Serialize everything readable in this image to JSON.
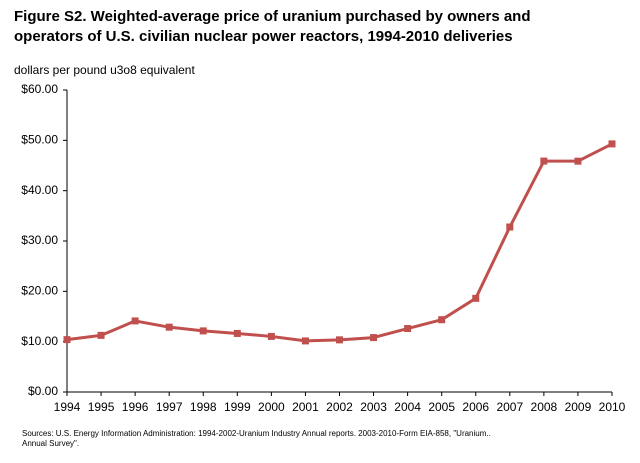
{
  "chart_data": {
    "type": "line",
    "title": [
      "Figure S2.  Weighted-average price of uranium purchased by owners and",
      "operators of U.S. civilian nuclear power reactors, 1994-2010 deliveries"
    ],
    "y_label": "dollars per pound u3o8 equivalent",
    "categories": [
      "1994",
      "1995",
      "1996",
      "1997",
      "1998",
      "1999",
      "2000",
      "2001",
      "2002",
      "2003",
      "2004",
      "2005",
      "2006",
      "2007",
      "2008",
      "2009",
      "2010"
    ],
    "series": [
      {
        "color": "#c0504d",
        "values": [
          10.4,
          11.25,
          14.12,
          12.88,
          12.14,
          11.63,
          11.04,
          10.15,
          10.36,
          10.81,
          12.61,
          14.36,
          18.61,
          32.78,
          45.88,
          45.86,
          49.29
        ]
      }
    ],
    "ylim": [
      0,
      60
    ],
    "yticks": [
      {
        "value": 0,
        "label": "$0.00"
      },
      {
        "value": 10,
        "label": "$10.00"
      },
      {
        "value": 20,
        "label": "$20.00"
      },
      {
        "value": 30,
        "label": "$30.00"
      },
      {
        "value": 40,
        "label": "$40.00"
      },
      {
        "value": 50,
        "label": "$50.00"
      },
      {
        "value": 60,
        "label": "$60.00"
      }
    ],
    "grid": false,
    "source": [
      "Sources: U.S. Energy Information Administration: 1994-2002-Uranium Industry Annual reports. 2003-2010-Form EIA-858, \"Uranium..",
      "Annual Survey\"."
    ]
  }
}
